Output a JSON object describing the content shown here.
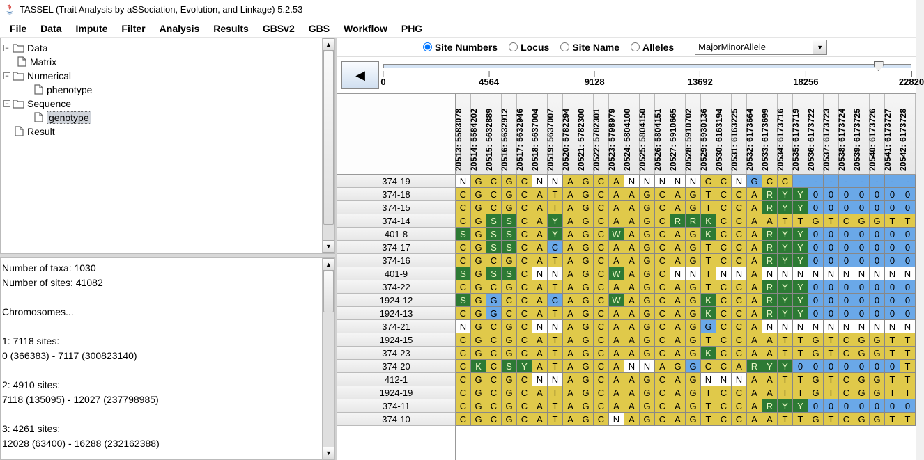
{
  "window": {
    "title": "TASSEL (Trait Analysis by aSSociation, Evolution, and Linkage) 5.2.53"
  },
  "menu": [
    {
      "label": "File",
      "u": 0
    },
    {
      "label": "Data",
      "u": 0
    },
    {
      "label": "Impute",
      "u": 0
    },
    {
      "label": "Filter",
      "u": 0
    },
    {
      "label": "Analysis",
      "u": 0
    },
    {
      "label": "Results",
      "u": 0
    },
    {
      "label": "GBSv2",
      "u": 0
    },
    {
      "label": "GBS",
      "strike": true
    },
    {
      "label": "Workflow"
    },
    {
      "label": "PHG"
    }
  ],
  "tree": [
    {
      "indent": 0,
      "toggle": "−",
      "icon": "folder",
      "label": "Data"
    },
    {
      "indent": 1,
      "toggle": null,
      "icon": "file",
      "label": "Matrix"
    },
    {
      "indent": 0,
      "toggle": "−",
      "icon": "folder",
      "label": "Numerical"
    },
    {
      "indent": 2,
      "toggle": null,
      "icon": "file",
      "label": "phenotype"
    },
    {
      "indent": 0,
      "toggle": "−",
      "icon": "folder",
      "label": "Sequence"
    },
    {
      "indent": 2,
      "toggle": null,
      "icon": "file",
      "label": "genotype",
      "selected": true
    },
    {
      "indent": 0,
      "toggle": null,
      "icon": "file",
      "label": "Result"
    }
  ],
  "info_text": "Number of taxa: 1030\nNumber of sites: 41082\n\nChromosomes...\n\n1: 7118 sites:\n0 (366383) - 7117 (300823140)\n\n2: 4910 sites:\n7118 (135095) - 12027 (237798985)\n\n3: 4261 sites:\n12028 (63400) - 16288 (232162388)",
  "radio": {
    "options": [
      "Site Numbers",
      "Locus",
      "Site Name",
      "Alleles"
    ],
    "selected": 0
  },
  "dropdown": {
    "value": "MajorMinorAllele"
  },
  "ruler": {
    "handle_pct": 93,
    "ticks": [
      {
        "pct": 0,
        "label": "0"
      },
      {
        "pct": 20,
        "label": "4564"
      },
      {
        "pct": 40,
        "label": "9128"
      },
      {
        "pct": 60,
        "label": "13692"
      },
      {
        "pct": 80,
        "label": "18256"
      },
      {
        "pct": 100,
        "label": "22820"
      }
    ]
  },
  "columns": [
    "20513: 5583078",
    "20514: 5584202",
    "20515: 5632889",
    "20516: 5632912",
    "20517: 5632946",
    "20518: 5637004",
    "20519: 5637007",
    "20520: 5782294",
    "20521: 5782300",
    "20522: 5782301",
    "20523: 5798979",
    "20524: 5804100",
    "20525: 5804150",
    "20526: 5804151",
    "20527: 5910665",
    "20528: 5910702",
    "20529: 5930136",
    "20530: 6163194",
    "20531: 6163225",
    "20532: 6173664",
    "20533: 6173699",
    "20534: 6173716",
    "20535: 6173719",
    "20536: 6173722",
    "20537: 6173723",
    "20538: 6173724",
    "20539: 6173725",
    "20540: 6173726",
    "20541: 6173727",
    "20542: 6173728"
  ],
  "rows": [
    {
      "label": "374-19",
      "c": [
        "N",
        "G",
        "C",
        "G",
        "C",
        "N",
        "N",
        "A",
        "G",
        "C",
        "A",
        "N",
        "N",
        "N",
        "N",
        "N",
        "C",
        "C",
        "N",
        "G",
        "C",
        "C",
        "-",
        "-",
        "-",
        "-",
        "-",
        "-",
        "-",
        "-"
      ]
    },
    {
      "label": "374-18",
      "c": [
        "C",
        "G",
        "C",
        "G",
        "C",
        "A",
        "T",
        "A",
        "G",
        "C",
        "A",
        "A",
        "G",
        "C",
        "A",
        "G",
        "T",
        "C",
        "C",
        "A",
        "R",
        "Y",
        "Y",
        "0",
        "0",
        "0",
        "0",
        "0",
        "0",
        "0"
      ]
    },
    {
      "label": "374-15",
      "c": [
        "C",
        "G",
        "C",
        "G",
        "C",
        "A",
        "T",
        "A",
        "G",
        "C",
        "A",
        "A",
        "G",
        "C",
        "A",
        "G",
        "T",
        "C",
        "C",
        "A",
        "R",
        "Y",
        "Y",
        "0",
        "0",
        "0",
        "0",
        "0",
        "0",
        "0"
      ]
    },
    {
      "label": "374-14",
      "c": [
        "C",
        "G",
        "S",
        "S",
        "C",
        "A",
        "Y",
        "A",
        "G",
        "C",
        "A",
        "A",
        "G",
        "C",
        "R",
        "R",
        "K",
        "C",
        "C",
        "A",
        "A",
        "T",
        "T",
        "G",
        "T",
        "C",
        "G",
        "G",
        "T",
        "T"
      ]
    },
    {
      "label": "401-8",
      "c": [
        "S",
        "G",
        "S",
        "S",
        "C",
        "A",
        "Y",
        "A",
        "G",
        "C",
        "W",
        "A",
        "G",
        "C",
        "A",
        "G",
        "K",
        "C",
        "C",
        "A",
        "R",
        "Y",
        "Y",
        "0",
        "0",
        "0",
        "0",
        "0",
        "0",
        "0"
      ]
    },
    {
      "label": "374-17",
      "c": [
        "C",
        "G",
        "S",
        "S",
        "C",
        "A",
        "C",
        "A",
        "G",
        "C",
        "A",
        "A",
        "G",
        "C",
        "A",
        "G",
        "T",
        "C",
        "C",
        "A",
        "R",
        "Y",
        "Y",
        "0",
        "0",
        "0",
        "0",
        "0",
        "0",
        "0"
      ]
    },
    {
      "label": "374-16",
      "c": [
        "C",
        "G",
        "C",
        "G",
        "C",
        "A",
        "T",
        "A",
        "G",
        "C",
        "A",
        "A",
        "G",
        "C",
        "A",
        "G",
        "T",
        "C",
        "C",
        "A",
        "R",
        "Y",
        "Y",
        "0",
        "0",
        "0",
        "0",
        "0",
        "0",
        "0"
      ]
    },
    {
      "label": "401-9",
      "c": [
        "S",
        "G",
        "S",
        "S",
        "C",
        "N",
        "N",
        "A",
        "G",
        "C",
        "W",
        "A",
        "G",
        "C",
        "N",
        "N",
        "T",
        "N",
        "N",
        "A",
        "N",
        "N",
        "N",
        "N",
        "N",
        "N",
        "N",
        "N",
        "N",
        "N"
      ]
    },
    {
      "label": "374-22",
      "c": [
        "C",
        "G",
        "C",
        "G",
        "C",
        "A",
        "T",
        "A",
        "G",
        "C",
        "A",
        "A",
        "G",
        "C",
        "A",
        "G",
        "T",
        "C",
        "C",
        "A",
        "R",
        "Y",
        "Y",
        "0",
        "0",
        "0",
        "0",
        "0",
        "0",
        "0"
      ]
    },
    {
      "label": "1924-12",
      "c": [
        "S",
        "G",
        "G",
        "C",
        "C",
        "A",
        "C",
        "A",
        "G",
        "C",
        "W",
        "A",
        "G",
        "C",
        "A",
        "G",
        "K",
        "C",
        "C",
        "A",
        "R",
        "Y",
        "Y",
        "0",
        "0",
        "0",
        "0",
        "0",
        "0",
        "0"
      ]
    },
    {
      "label": "1924-13",
      "c": [
        "C",
        "G",
        "G",
        "C",
        "C",
        "A",
        "T",
        "A",
        "G",
        "C",
        "A",
        "A",
        "G",
        "C",
        "A",
        "G",
        "K",
        "C",
        "C",
        "A",
        "R",
        "Y",
        "Y",
        "0",
        "0",
        "0",
        "0",
        "0",
        "0",
        "0"
      ]
    },
    {
      "label": "374-21",
      "c": [
        "N",
        "G",
        "C",
        "G",
        "C",
        "N",
        "N",
        "A",
        "G",
        "C",
        "A",
        "A",
        "G",
        "C",
        "A",
        "G",
        "G",
        "C",
        "C",
        "A",
        "N",
        "N",
        "N",
        "N",
        "N",
        "N",
        "N",
        "N",
        "N",
        "N"
      ]
    },
    {
      "label": "1924-15",
      "c": [
        "C",
        "G",
        "C",
        "G",
        "C",
        "A",
        "T",
        "A",
        "G",
        "C",
        "A",
        "A",
        "G",
        "C",
        "A",
        "G",
        "T",
        "C",
        "C",
        "A",
        "A",
        "T",
        "T",
        "G",
        "T",
        "C",
        "G",
        "G",
        "T",
        "T"
      ]
    },
    {
      "label": "374-23",
      "c": [
        "C",
        "G",
        "C",
        "G",
        "C",
        "A",
        "T",
        "A",
        "G",
        "C",
        "A",
        "A",
        "G",
        "C",
        "A",
        "G",
        "K",
        "C",
        "C",
        "A",
        "A",
        "T",
        "T",
        "G",
        "T",
        "C",
        "G",
        "G",
        "T",
        "T"
      ]
    },
    {
      "label": "374-20",
      "c": [
        "C",
        "K",
        "C",
        "S",
        "Y",
        "A",
        "T",
        "A",
        "G",
        "C",
        "A",
        "N",
        "N",
        "A",
        "G",
        "G",
        "C",
        "C",
        "A",
        "R",
        "Y",
        "Y",
        "0",
        "0",
        "0",
        "0",
        "0",
        "0",
        "0",
        "T"
      ]
    },
    {
      "label": "412-1",
      "c": [
        "C",
        "G",
        "C",
        "G",
        "C",
        "N",
        "N",
        "A",
        "G",
        "C",
        "A",
        "A",
        "G",
        "C",
        "A",
        "G",
        "N",
        "N",
        "N",
        "A",
        "A",
        "T",
        "T",
        "G",
        "T",
        "C",
        "G",
        "G",
        "T",
        "T"
      ]
    },
    {
      "label": "1924-19",
      "c": [
        "C",
        "G",
        "C",
        "G",
        "C",
        "A",
        "T",
        "A",
        "G",
        "C",
        "A",
        "A",
        "G",
        "C",
        "A",
        "G",
        "T",
        "C",
        "C",
        "A",
        "A",
        "T",
        "T",
        "G",
        "T",
        "C",
        "G",
        "G",
        "T",
        "T"
      ]
    },
    {
      "label": "374-11",
      "c": [
        "C",
        "G",
        "C",
        "G",
        "C",
        "A",
        "T",
        "A",
        "G",
        "C",
        "A",
        "A",
        "G",
        "C",
        "A",
        "G",
        "T",
        "C",
        "C",
        "A",
        "R",
        "Y",
        "Y",
        "0",
        "0",
        "0",
        "0",
        "0",
        "0",
        "0"
      ]
    },
    {
      "label": "374-10",
      "c": [
        "C",
        "G",
        "C",
        "G",
        "C",
        "A",
        "T",
        "A",
        "G",
        "C",
        "N",
        "A",
        "G",
        "C",
        "A",
        "G",
        "T",
        "C",
        "C",
        "A",
        "A",
        "T",
        "T",
        "G",
        "T",
        "C",
        "G",
        "G",
        "T",
        "T"
      ]
    }
  ],
  "colors": {
    "palette": {
      "N": "#ffffff",
      "-": "#6aa8e8",
      "0": "#6aa8e8",
      "A": "#e0c94a",
      "T": "#e0c94a",
      "C": "#e0c94a",
      "G": "#e0c94a",
      "R": "#2d7a34",
      "Y": "#2d7a34",
      "S": "#2d7a34",
      "W": "#2d7a34",
      "K": "#2d7a34",
      "M": "#2d7a34"
    },
    "dark_fg": {
      "R": 1,
      "Y": 1,
      "S": 1,
      "W": 1,
      "K": 1,
      "M": 1
    }
  },
  "overrides": {
    "374-19": {
      "19": "#6aa8e8"
    },
    "374-17": {
      "6": "#6aa8e8"
    },
    "1924-12": {
      "2": "#6aa8e8",
      "6": "#6aa8e8"
    },
    "1924-13": {
      "2": "#6aa8e8"
    },
    "374-21": {
      "16": "#6aa8e8"
    },
    "374-20": {
      "15": "#6aa8e8"
    }
  }
}
